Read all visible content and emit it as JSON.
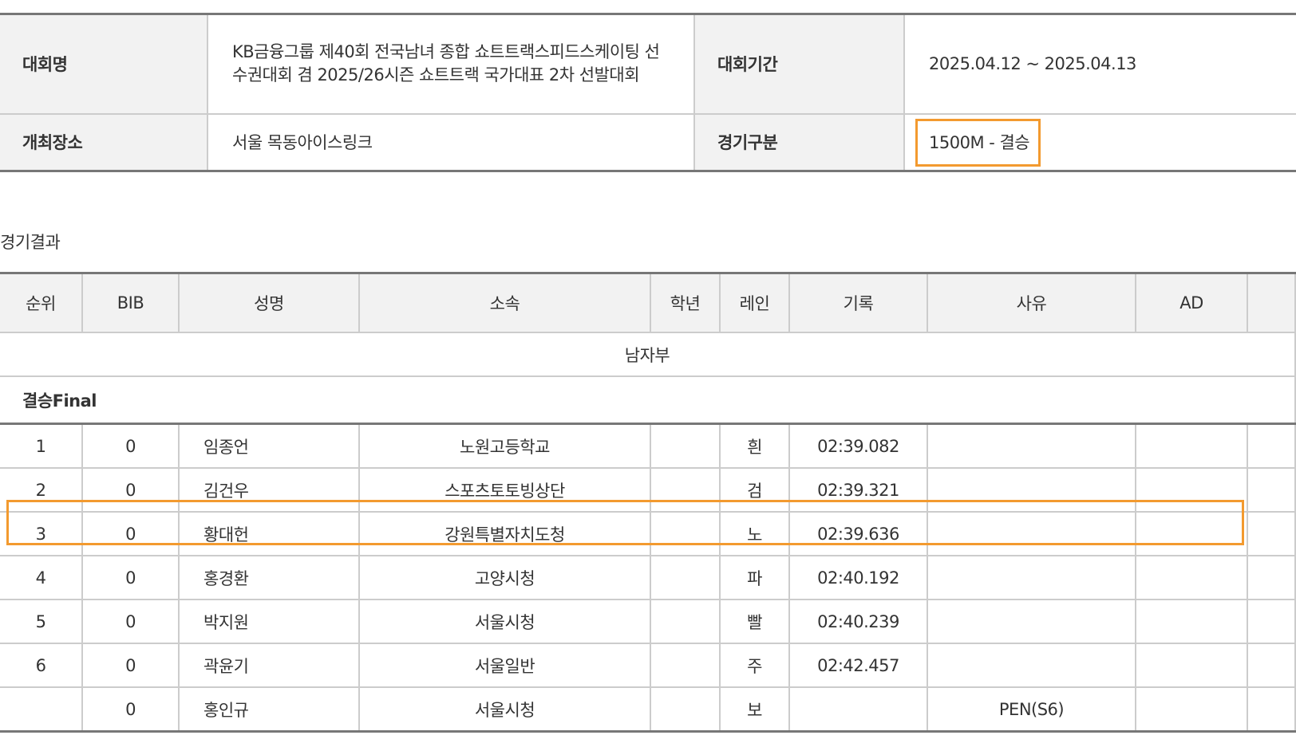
{
  "info": {
    "name_label": "대회명",
    "name_value": "KB금융그룹 제40회 전국남녀 종합 쇼트트랙스피드스케이팅 선수권대회 겸 2025/26시즌 쇼트트랙 국가대표 2차 선발대회",
    "period_label": "대회기간",
    "period_value": "2025.04.12 ~ 2025.04.13",
    "venue_label": "개최장소",
    "venue_value": "서울 목동아이스링크",
    "event_label": "경기구분",
    "event_value": "1500M - 결승"
  },
  "results": {
    "title": "경기결과",
    "headers": [
      "순위",
      "BIB",
      "성명",
      "소속",
      "학년",
      "레인",
      "기록",
      "사유",
      "AD",
      ""
    ],
    "group": "남자부",
    "round": "결승Final",
    "rows": [
      [
        "1",
        "0",
        "임종언",
        "노원고등학교",
        "",
        "흰",
        "02:39.082",
        "",
        ""
      ],
      [
        "2",
        "0",
        "김건우",
        "스포츠토토빙상단",
        "",
        "검",
        "02:39.321",
        "",
        ""
      ],
      [
        "3",
        "0",
        "황대헌",
        "강원특별자치도청",
        "",
        "노",
        "02:39.636",
        "",
        ""
      ],
      [
        "4",
        "0",
        "홍경환",
        "고양시청",
        "",
        "파",
        "02:40.192",
        "",
        ""
      ],
      [
        "5",
        "0",
        "박지원",
        "서울시청",
        "",
        "빨",
        "02:40.239",
        "",
        ""
      ],
      [
        "6",
        "0",
        "곽윤기",
        "서울일반",
        "",
        "주",
        "02:42.457",
        "",
        ""
      ],
      [
        "",
        "0",
        "홍인규",
        "서울시청",
        "",
        "보",
        "",
        "PEN(S6)",
        ""
      ]
    ]
  },
  "highlight_color": "#f39a2f"
}
